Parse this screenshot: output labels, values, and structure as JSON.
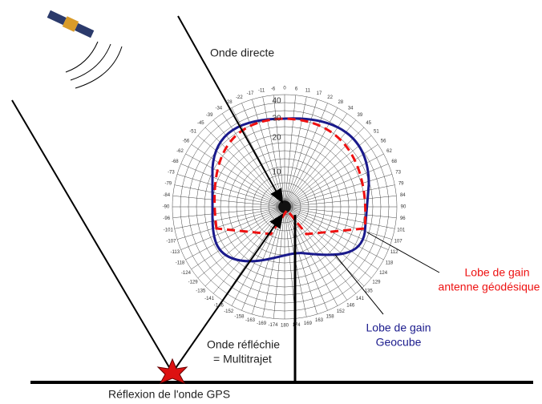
{
  "labels": {
    "direct": "Onde directe",
    "reflected": [
      "Onde réfléchie",
      "= Multitrajet"
    ],
    "reflection": "Réflexion de l'onde GPS",
    "geodesic": [
      "Lobe de gain",
      "antenne géodésique"
    ],
    "geocube": [
      "Lobe de gain",
      "Geocube"
    ]
  },
  "polar": {
    "radial_labels": [
      10,
      20,
      30,
      40
    ],
    "angle_labels": [
      0,
      6,
      11,
      17,
      22,
      28,
      34,
      39,
      45,
      51,
      56,
      62,
      68,
      73,
      79,
      84,
      90,
      96,
      101,
      107,
      112,
      118,
      124,
      129,
      135,
      141,
      146,
      152,
      158,
      163,
      169,
      174,
      180,
      -174,
      -169,
      -163,
      -158,
      -152,
      -146,
      -141,
      -135,
      -129,
      -124,
      -118,
      -113,
      -107,
      -101,
      -96,
      -90,
      -84,
      -79,
      -73,
      -68,
      -62,
      -56,
      -51,
      -45,
      -39,
      -34,
      -28,
      -22,
      -17,
      -11,
      -6
    ]
  }
}
